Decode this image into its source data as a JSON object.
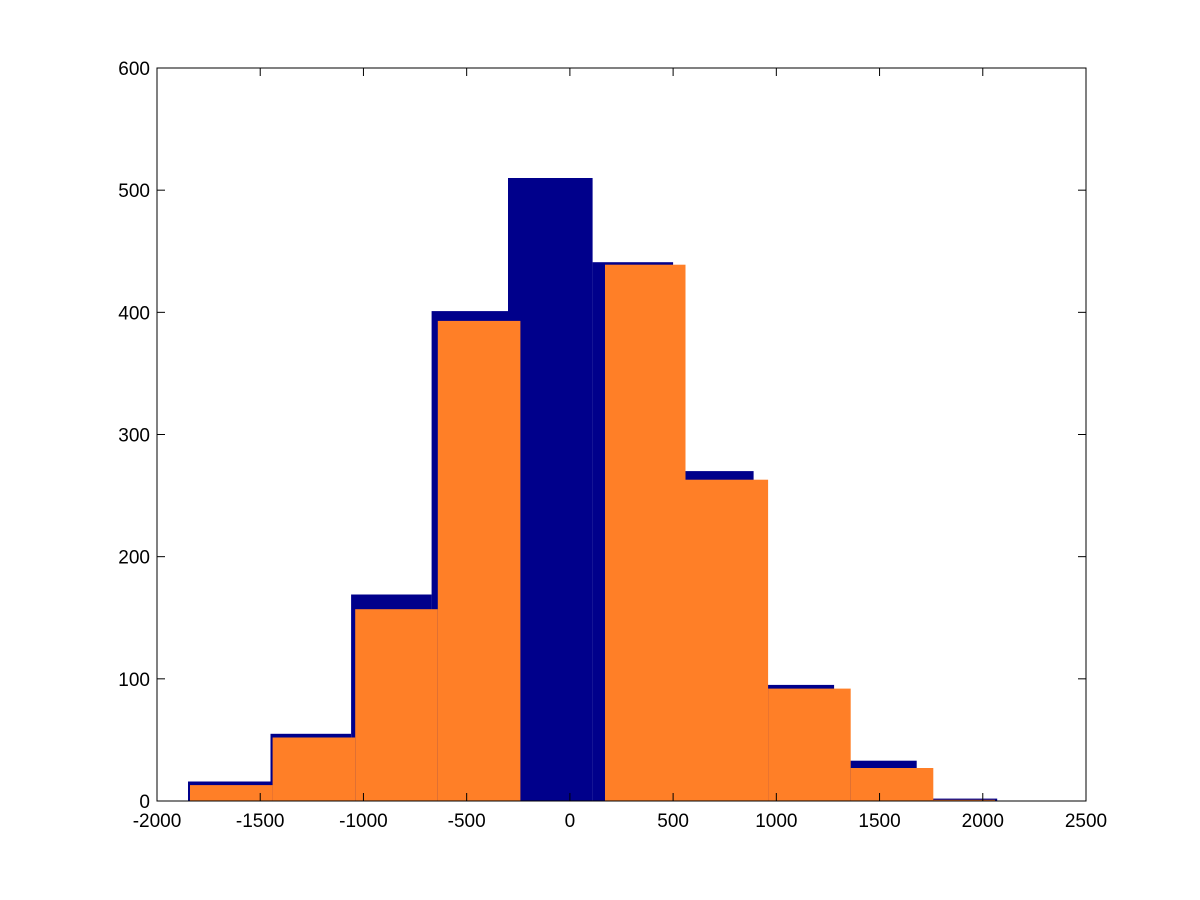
{
  "chart_data": {
    "type": "bar",
    "title": "",
    "xlabel": "",
    "ylabel": "",
    "xlim": [
      -2000,
      2500
    ],
    "ylim": [
      0,
      600
    ],
    "xticks": [
      -2000,
      -1500,
      -1000,
      -500,
      0,
      500,
      1000,
      1500,
      2000,
      2500
    ],
    "yticks": [
      0,
      100,
      200,
      300,
      400,
      500,
      600
    ],
    "grid": false,
    "legend": "none",
    "series": [
      {
        "color": "#00008b",
        "bin_edges": [
          -1850,
          -1450,
          -1060,
          -670,
          -300,
          110,
          500,
          890,
          1280,
          1680,
          2070
        ],
        "values": [
          16,
          55,
          169,
          401,
          510,
          441,
          270,
          95,
          33,
          2
        ]
      },
      {
        "color": "#ff7f27",
        "bin_edges": [
          -1840,
          -1440,
          -1040,
          -640,
          -240,
          170,
          560,
          960,
          1360,
          1760,
          2060
        ],
        "values": [
          13,
          52,
          157,
          393,
          0,
          439,
          263,
          92,
          27,
          1
        ]
      }
    ]
  }
}
